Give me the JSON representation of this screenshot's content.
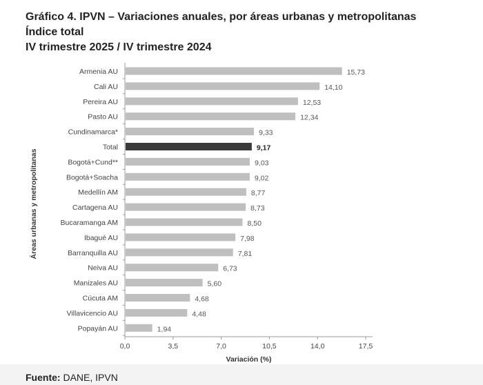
{
  "title_lines": [
    "Gráfico 4. IPVN – Variaciones anuales, por áreas urbanas y metropolitanas",
    "Índice total",
    "IV trimestre 2025 / IV trimestre 2024"
  ],
  "source_label": "Fuente:",
  "source_text": " DANE, IPVN",
  "chart_data": {
    "type": "bar",
    "orientation": "horizontal",
    "title": "Gráfico 4. IPVN – Variaciones anuales, por áreas urbanas y metropolitanas",
    "xlabel": "Variación (%)",
    "ylabel": "Áreas urbanas y metropolitanas",
    "xlim": [
      0,
      17.5
    ],
    "xticks": [
      "0,0",
      "3,5",
      "7,0",
      "10,5",
      "14,0",
      "17,5"
    ],
    "xtick_values": [
      0,
      3.5,
      7,
      10.5,
      14,
      17.5
    ],
    "grid": false,
    "categories": [
      "Armenia AU",
      "Cali AU",
      "Pereira AU",
      "Pasto AU",
      "Cundinamarca*",
      "Total",
      "Bogotá+Cund**",
      "Bogotá+Soacha",
      "Medellín AM",
      "Cartagena AU",
      "Bucaramanga AM",
      "Ibagué AU",
      "Barranquilla AU",
      "Neiva AU",
      "Manizales AU",
      "Cúcuta AM",
      "Villavicencio AU",
      "Popayán AU"
    ],
    "values": [
      15.73,
      14.1,
      12.53,
      12.34,
      9.33,
      9.17,
      9.03,
      9.02,
      8.77,
      8.73,
      8.5,
      7.98,
      7.81,
      6.73,
      5.6,
      4.68,
      4.48,
      1.94
    ],
    "value_labels": [
      "15,73",
      "14,10",
      "12,53",
      "12,34",
      "9,33",
      "9,17",
      "9,03",
      "9,02",
      "8,77",
      "8,73",
      "8,50",
      "7,98",
      "7,81",
      "6,73",
      "5,60",
      "4,68",
      "4,48",
      "1,94"
    ],
    "highlight": "Total",
    "colors": {
      "bar": "#bfbfbf",
      "highlight": "#3a3a3a",
      "text": "#555555"
    }
  }
}
